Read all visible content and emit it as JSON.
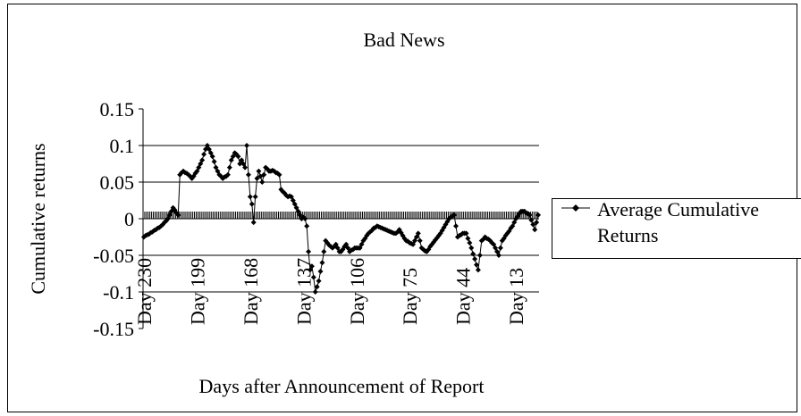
{
  "chart_data": {
    "type": "line",
    "title": "Bad News",
    "ylabel": "Cumulative returns",
    "xlabel": "Days after Announcement of Report",
    "ylim": [
      -0.15,
      0.15
    ],
    "yticks": [
      -0.15,
      -0.1,
      -0.05,
      0,
      0.05,
      0.1,
      0.15
    ],
    "grid": true,
    "legend": "right",
    "categories": [
      "Day 230",
      null,
      null,
      null,
      null,
      null,
      null,
      null,
      null,
      null,
      null,
      null,
      null,
      null,
      null,
      null,
      null,
      null,
      null,
      null,
      null,
      null,
      null,
      null,
      null,
      null,
      null,
      null,
      null,
      null,
      null,
      "Day 199",
      null,
      null,
      null,
      null,
      null,
      null,
      null,
      null,
      null,
      null,
      null,
      null,
      null,
      null,
      null,
      null,
      null,
      null,
      null,
      null,
      null,
      null,
      null,
      null,
      null,
      null,
      null,
      null,
      null,
      null,
      "Day 168",
      null,
      null,
      null,
      null,
      null,
      null,
      null,
      null,
      null,
      null,
      null,
      null,
      null,
      null,
      null,
      null,
      null,
      null,
      null,
      null,
      null,
      null,
      null,
      null,
      null,
      null,
      null,
      null,
      null,
      null,
      "Day 137",
      null,
      null,
      null,
      null,
      null,
      null,
      null,
      null,
      null,
      null,
      null,
      null,
      null,
      null,
      null,
      null,
      null,
      null,
      null,
      null,
      null,
      null,
      null,
      null,
      null,
      null,
      null,
      null,
      null,
      null,
      "Day 106",
      null,
      null,
      null,
      null,
      null,
      null,
      null,
      null,
      null,
      null,
      null,
      null,
      null,
      null,
      null,
      null,
      null,
      null,
      null,
      null,
      null,
      null,
      null,
      null,
      null,
      null,
      null,
      null,
      null,
      null,
      "Day 75",
      null,
      null,
      null,
      null,
      null,
      null,
      null,
      null,
      null,
      null,
      null,
      null,
      null,
      null,
      null,
      null,
      null,
      null,
      null,
      null,
      null,
      null,
      null,
      null,
      null,
      null,
      null,
      null,
      null,
      null,
      "Day 44",
      null,
      null,
      null,
      null,
      null,
      null,
      null,
      null,
      null,
      null,
      null,
      null,
      null,
      null,
      null,
      null,
      null,
      null,
      null,
      null,
      null,
      null,
      null,
      null,
      null,
      null,
      null,
      null,
      null,
      null,
      "Day 13",
      null,
      null,
      null,
      null,
      null,
      null,
      null,
      null,
      null,
      null,
      null,
      null,
      null
    ],
    "series": [
      {
        "name": "Average Cumulative Returns",
        "color": "#000000",
        "values": [
          -0.025,
          -0.023,
          -0.022,
          -0.021,
          -0.019,
          -0.018,
          -0.016,
          -0.015,
          -0.013,
          -0.012,
          -0.01,
          -0.008,
          -0.005,
          -0.003,
          0.0,
          0.005,
          0.01,
          0.015,
          0.012,
          0.008,
          0.005,
          0.06,
          0.063,
          0.065,
          0.063,
          0.062,
          0.06,
          0.058,
          0.055,
          0.058,
          0.062,
          0.065,
          0.07,
          0.075,
          0.08,
          0.088,
          0.095,
          0.1,
          0.095,
          0.09,
          0.085,
          0.078,
          0.07,
          0.065,
          0.06,
          0.058,
          0.055,
          0.057,
          0.058,
          0.06,
          0.07,
          0.08,
          0.085,
          0.09,
          0.088,
          0.085,
          0.075,
          0.08,
          0.075,
          0.07,
          0.1,
          0.06,
          0.03,
          0.02,
          -0.005,
          0.03,
          0.055,
          0.065,
          0.058,
          0.05,
          0.06,
          0.07,
          0.068,
          0.065,
          0.065,
          0.066,
          0.065,
          0.063,
          0.062,
          0.06,
          0.04,
          0.037,
          0.035,
          0.032,
          0.03,
          0.031,
          0.03,
          0.025,
          0.02,
          0.015,
          0.01,
          0.005,
          0.0,
          0.002,
          0.0,
          -0.01,
          -0.045,
          -0.07,
          -0.065,
          -0.08,
          -0.1,
          -0.093,
          -0.085,
          -0.072,
          -0.06,
          -0.045,
          -0.03,
          -0.033,
          -0.036,
          -0.038,
          -0.04,
          -0.038,
          -0.035,
          -0.04,
          -0.045,
          -0.045,
          -0.042,
          -0.038,
          -0.035,
          -0.04,
          -0.045,
          -0.043,
          -0.042,
          -0.04,
          -0.04,
          -0.04,
          -0.04,
          -0.035,
          -0.03,
          -0.027,
          -0.023,
          -0.02,
          -0.018,
          -0.016,
          -0.013,
          -0.012,
          -0.01,
          -0.011,
          -0.012,
          -0.013,
          -0.014,
          -0.015,
          -0.016,
          -0.017,
          -0.018,
          -0.019,
          -0.02,
          -0.02,
          -0.018,
          -0.015,
          -0.019,
          -0.023,
          -0.027,
          -0.03,
          -0.031,
          -0.033,
          -0.034,
          -0.035,
          -0.03,
          -0.025,
          -0.02,
          -0.03,
          -0.04,
          -0.042,
          -0.044,
          -0.045,
          -0.042,
          -0.038,
          -0.035,
          -0.032,
          -0.029,
          -0.026,
          -0.023,
          -0.02,
          -0.016,
          -0.012,
          -0.008,
          -0.004,
          0.0,
          0.002,
          0.004,
          0.005,
          -0.01,
          -0.025,
          -0.023,
          -0.022,
          -0.02,
          -0.02,
          -0.02,
          -0.027,
          -0.033,
          -0.04,
          -0.048,
          -0.055,
          -0.063,
          -0.07,
          -0.05,
          -0.03,
          -0.028,
          -0.025,
          -0.027,
          -0.028,
          -0.03,
          -0.033,
          -0.035,
          -0.04,
          -0.045,
          -0.05,
          -0.04,
          -0.03,
          -0.027,
          -0.023,
          -0.02,
          -0.017,
          -0.013,
          -0.01,
          -0.005,
          0.0,
          0.003,
          0.007,
          0.01,
          0.01,
          0.01,
          0.008,
          0.007,
          0.005,
          -0.002,
          -0.008,
          -0.015,
          -0.005,
          0.005
        ]
      }
    ]
  }
}
